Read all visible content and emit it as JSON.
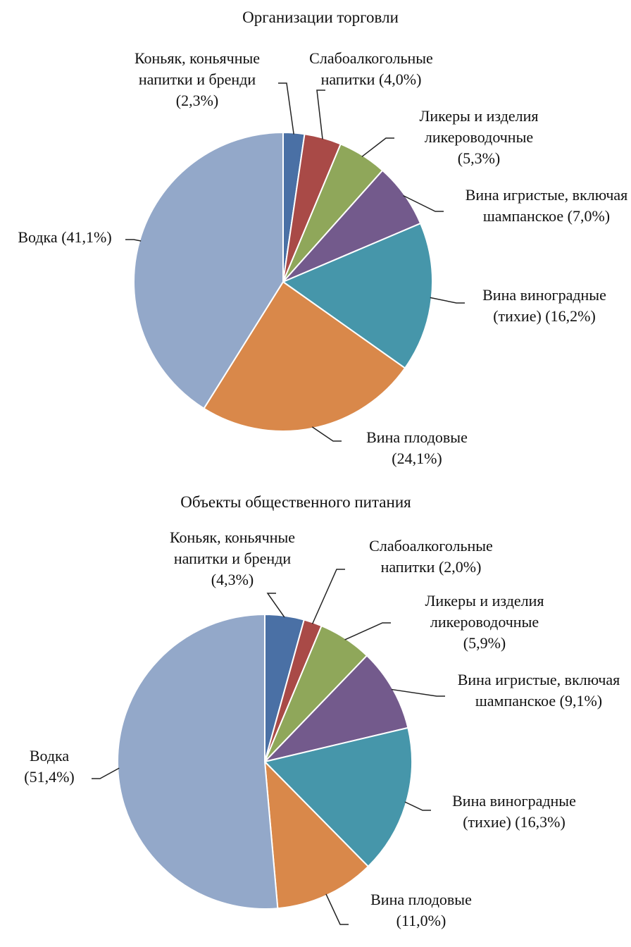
{
  "chart_data": [
    {
      "type": "pie",
      "title": "Организации торговли",
      "categories": [
        "Коньяк, коньячные напитки и бренди",
        "Слабоалкогольные напитки",
        "Ликеры и изделия ликероводочные",
        "Вина игристые, включая шампанское",
        "Вина виноградные (тихие)",
        "Вина плодовые",
        "Водка"
      ],
      "values": [
        2.3,
        4.0,
        5.3,
        7.0,
        16.2,
        24.1,
        41.1
      ],
      "value_labels": [
        "(2,3%)",
        "(4,0%)",
        "(5,3%)",
        "(7,0%)",
        "(16,2%)",
        "(24,1%)",
        "(41,1%)"
      ],
      "colors": [
        "#4a70a5",
        "#a94a47",
        "#8fa75a",
        "#735a8c",
        "#4696aa",
        "#d9884a",
        "#93a8c9"
      ]
    },
    {
      "type": "pie",
      "title": "Объекты общественного питания",
      "categories": [
        "Коньяк, коньячные напитки и бренди",
        "Слабоалкогольные напитки",
        "Ликеры и изделия ликероводочные",
        "Вина игристые, включая шампанское",
        "Вина виноградные (тихие)",
        "Вина плодовые",
        "Водка"
      ],
      "values": [
        4.3,
        2.0,
        5.9,
        9.1,
        16.3,
        11.0,
        51.4
      ],
      "value_labels": [
        "(4,3%)",
        "(2,0%)",
        "(5,9%)",
        "(9,1%)",
        "(16,3%)",
        "(11,0%)",
        "(51,4%)"
      ],
      "colors": [
        "#4a70a5",
        "#a94a47",
        "#8fa75a",
        "#735a8c",
        "#4696aa",
        "#d9884a",
        "#93a8c9"
      ]
    }
  ]
}
